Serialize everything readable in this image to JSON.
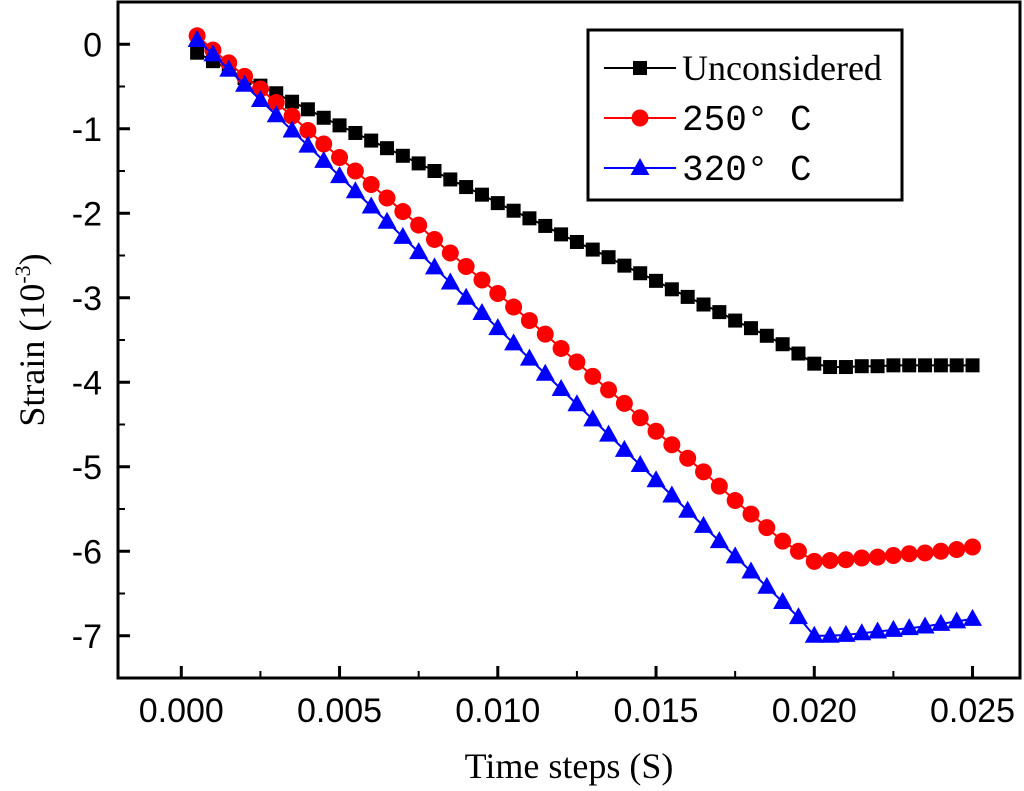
{
  "chart_data": {
    "type": "line",
    "xlabel": "Time steps",
    "xlabel_unit": "(S)",
    "ylabel": "Strain",
    "ylabel_unit_base": "(10",
    "ylabel_unit_exp": "-3",
    "ylabel_unit_close": ")",
    "xlim": [
      -0.002,
      0.0265
    ],
    "ylim": [
      -7.5,
      0.5
    ],
    "xticks": [
      0.0,
      0.005,
      0.01,
      0.015,
      0.02,
      0.025
    ],
    "xtick_labels": [
      "0.000",
      "0.005",
      "0.010",
      "0.015",
      "0.020",
      "0.025"
    ],
    "yticks": [
      0,
      -1,
      -2,
      -3,
      -4,
      -5,
      -6,
      -7
    ],
    "ytick_labels": [
      "0",
      "-1",
      "-2",
      "-3",
      "-4",
      "-5",
      "-6",
      "-7"
    ],
    "legend_position": "top-right",
    "x": [
      0.0005,
      0.001,
      0.0015,
      0.002,
      0.0025,
      0.003,
      0.0035,
      0.004,
      0.0045,
      0.005,
      0.0055,
      0.006,
      0.0065,
      0.007,
      0.0075,
      0.008,
      0.0085,
      0.009,
      0.0095,
      0.01,
      0.0105,
      0.011,
      0.0115,
      0.012,
      0.0125,
      0.013,
      0.0135,
      0.014,
      0.0145,
      0.015,
      0.0155,
      0.016,
      0.0165,
      0.017,
      0.0175,
      0.018,
      0.0185,
      0.019,
      0.0195,
      0.02,
      0.0205,
      0.021,
      0.0215,
      0.022,
      0.0225,
      0.023,
      0.0235,
      0.024,
      0.0245,
      0.025
    ],
    "series": [
      {
        "name": "Unconsidered",
        "color": "#000000",
        "marker": "square",
        "values": [
          -0.1,
          -0.2,
          -0.3,
          -0.4,
          -0.49,
          -0.58,
          -0.68,
          -0.77,
          -0.87,
          -0.96,
          -1.05,
          -1.14,
          -1.23,
          -1.32,
          -1.41,
          -1.5,
          -1.6,
          -1.69,
          -1.78,
          -1.88,
          -1.97,
          -2.06,
          -2.15,
          -2.25,
          -2.34,
          -2.43,
          -2.52,
          -2.62,
          -2.71,
          -2.8,
          -2.9,
          -2.99,
          -3.08,
          -3.17,
          -3.27,
          -3.36,
          -3.45,
          -3.55,
          -3.66,
          -3.78,
          -3.82,
          -3.82,
          -3.81,
          -3.81,
          -3.8,
          -3.8,
          -3.8,
          -3.8,
          -3.8,
          -3.8
        ]
      },
      {
        "name": "250° C",
        "color": "#ff0000",
        "marker": "circle",
        "values": [
          0.1,
          -0.07,
          -0.22,
          -0.38,
          -0.53,
          -0.69,
          -0.85,
          -1.02,
          -1.18,
          -1.34,
          -1.5,
          -1.66,
          -1.82,
          -1.98,
          -2.14,
          -2.31,
          -2.47,
          -2.63,
          -2.79,
          -2.95,
          -3.11,
          -3.27,
          -3.43,
          -3.6,
          -3.76,
          -3.93,
          -4.09,
          -4.25,
          -4.42,
          -4.58,
          -4.74,
          -4.9,
          -5.06,
          -5.23,
          -5.4,
          -5.56,
          -5.72,
          -5.88,
          -6.0,
          -6.12,
          -6.11,
          -6.1,
          -6.08,
          -6.07,
          -6.05,
          -6.03,
          -6.02,
          -6.0,
          -5.98,
          -5.95
        ]
      },
      {
        "name": "320° C",
        "color": "#0000ff",
        "marker": "triangle",
        "values": [
          0.05,
          -0.12,
          -0.3,
          -0.48,
          -0.66,
          -0.84,
          -1.02,
          -1.2,
          -1.38,
          -1.56,
          -1.74,
          -1.92,
          -2.1,
          -2.28,
          -2.46,
          -2.64,
          -2.82,
          -3.0,
          -3.18,
          -3.36,
          -3.54,
          -3.72,
          -3.9,
          -4.08,
          -4.26,
          -4.44,
          -4.62,
          -4.8,
          -4.98,
          -5.16,
          -5.34,
          -5.52,
          -5.7,
          -5.88,
          -6.06,
          -6.24,
          -6.42,
          -6.6,
          -6.78,
          -7.0,
          -7.0,
          -6.99,
          -6.97,
          -6.95,
          -6.93,
          -6.91,
          -6.89,
          -6.86,
          -6.83,
          -6.8
        ]
      }
    ]
  }
}
